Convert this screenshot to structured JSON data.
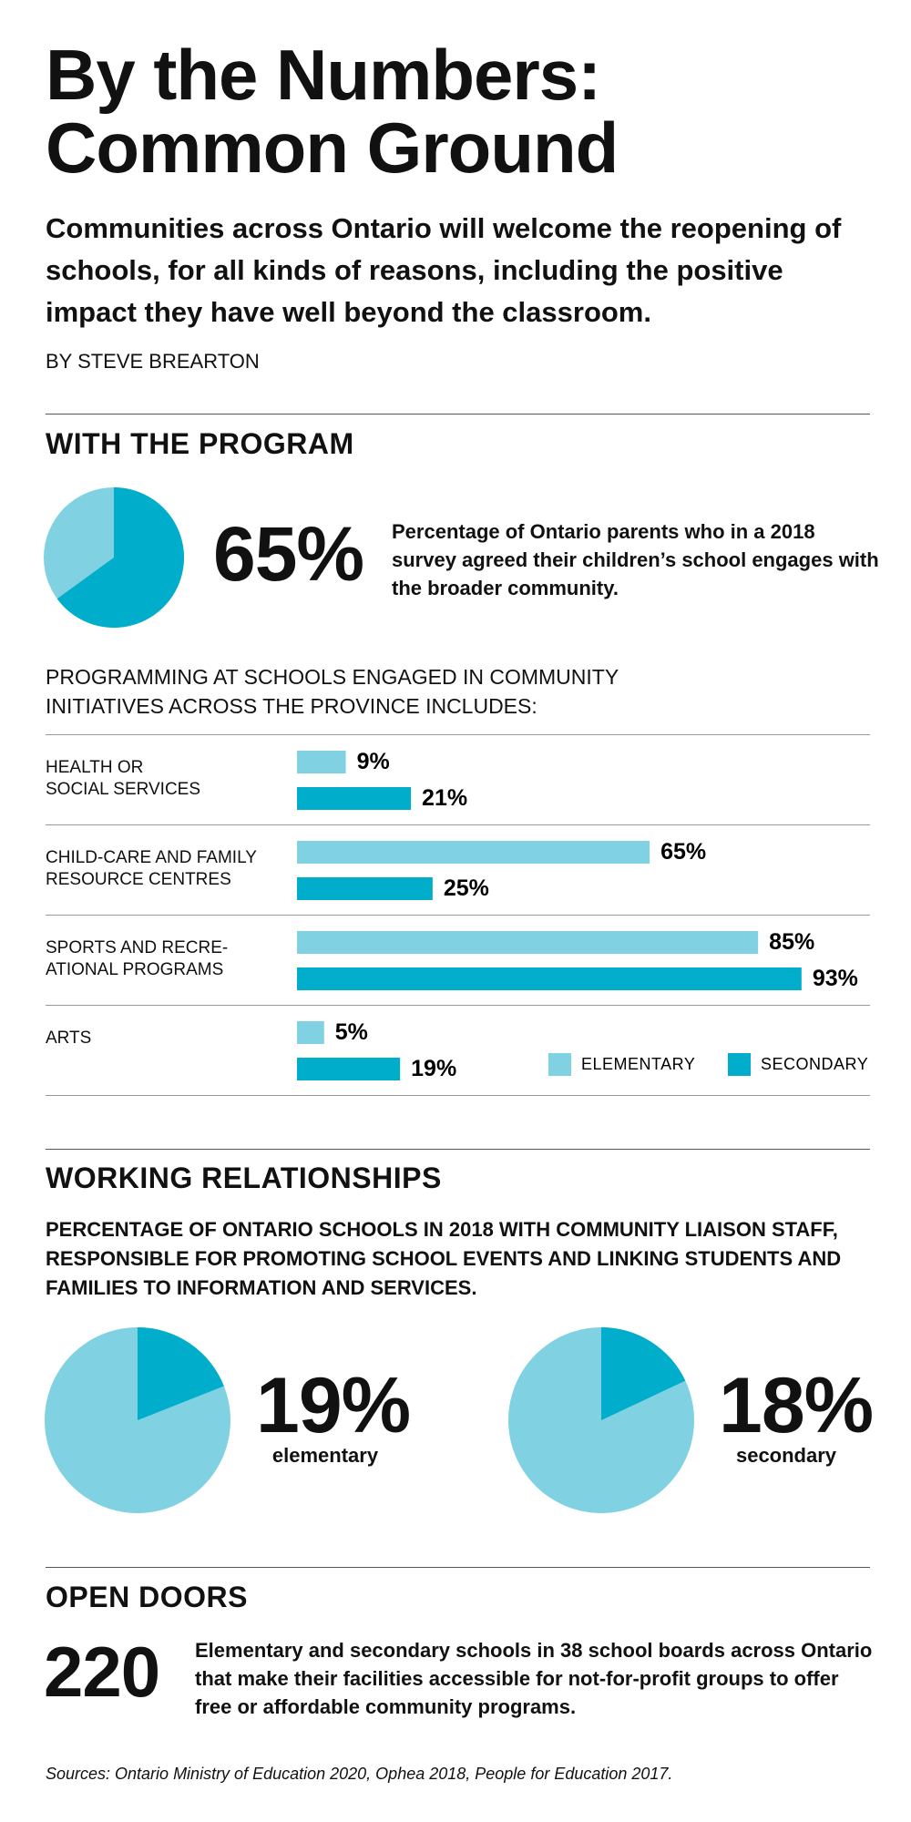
{
  "header": {
    "title": "By the Numbers: Common Ground",
    "subtitle": "Communities across Ontario will welcome the reopening of schools, for all kinds of reasons, including the positive impact they have well beyond the classroom.",
    "byline": "BY STEVE BREARTON"
  },
  "with_the_program": {
    "heading": "WITH THE PROGRAM",
    "description": "Percentage of Ontario parents who in a 2018 survey agreed their children’s school engages with the broader community."
  },
  "working_relationships": {
    "heading": "WORKING RELATIONSHIPS",
    "description": "PERCENTAGE OF ONTARIO SCHOOLS IN 2018 WITH COMMUNITY LIAISON STAFF, RESPONSIBLE FOR PROMOTING SCHOOL EVENTS AND LINKING STUDENTS AND FAMILIES TO INFORMATION AND SERVICES."
  },
  "open_doors": {
    "heading": "OPEN DOORS",
    "number": 220,
    "description": "Elementary and secondary schools in 38 school boards across Ontario that make their facilities accessible for not-for-profit groups to offer free or affordable community programs."
  },
  "sources": "Sources: Ontario Ministry of Education 2020, Ophea 2018, People for Education 2017.",
  "chart_data": [
    {
      "type": "pie",
      "values": [
        65
      ],
      "value_labels": [
        "65%"
      ],
      "color": "#00adca",
      "rest_color": "#80d2e3"
    },
    {
      "type": "bar",
      "orientation": "horizontal",
      "title": "PROGRAMMING AT SCHOOLS ENGAGED IN COMMUNITY\nINITIATIVES ACROSS THE PROVINCE INCLUDES:",
      "categories": [
        "HEALTH OR\nSOCIAL SERVICES",
        "CHILD-CARE AND FAMILY\nRESOURCE CENTRES",
        "SPORTS AND RECRE-\nATIONAL PROGRAMS",
        "ARTS"
      ],
      "series": [
        {
          "name": "ELEMENTARY",
          "color": "#80d2e3",
          "values": [
            9,
            65,
            85,
            5
          ],
          "value_labels": [
            "9%",
            "65%",
            "85%",
            "5%"
          ]
        },
        {
          "name": "SECONDARY",
          "color": "#00adca",
          "values": [
            21,
            25,
            93,
            19
          ],
          "value_labels": [
            "21%",
            "25%",
            "93%",
            "19%"
          ]
        }
      ],
      "legend": "bottom-right"
    },
    {
      "type": "pie",
      "values": [
        19
      ],
      "value_labels": [
        "19%"
      ],
      "label": "elementary",
      "color": "#00adca",
      "rest_color": "#80d2e3"
    },
    {
      "type": "pie",
      "values": [
        18
      ],
      "value_labels": [
        "18%"
      ],
      "label": "secondary",
      "color": "#00adca",
      "rest_color": "#80d2e3"
    }
  ]
}
